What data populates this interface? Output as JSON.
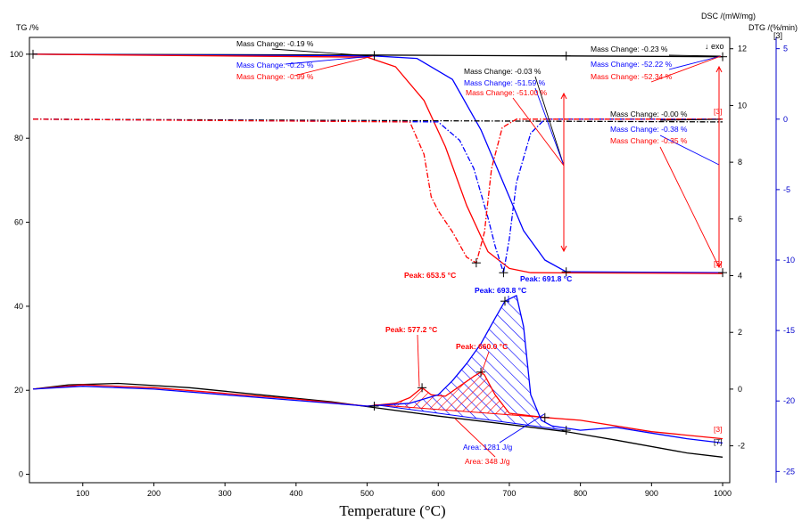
{
  "chart_data": {
    "type": "line",
    "xlabel": "Temperature (°C)",
    "x_ticks": [
      100,
      200,
      300,
      400,
      500,
      600,
      700,
      800,
      900,
      1000
    ],
    "xlim": [
      25,
      1010
    ],
    "axes": {
      "tg": {
        "label": "TG /%",
        "ticks": [
          0,
          20,
          40,
          60,
          80,
          100
        ],
        "ylim": [
          -2,
          104
        ],
        "color": "#000000"
      },
      "dsc": {
        "label": "DSC /(mW/mg)",
        "exo_label": "↓ exo",
        "ticks": [
          -2,
          0,
          2,
          4,
          6,
          8,
          10,
          12
        ],
        "ylim": [
          -3.3,
          12.4
        ],
        "color": "#000000"
      },
      "dtg": {
        "label": "DTG /(%/min)",
        "sublabel": "[3]",
        "ticks": [
          -25,
          -20,
          -15,
          -10,
          -5,
          0,
          5
        ],
        "ylim": [
          -25.8,
          5.8
        ],
        "color": "#0000cc"
      }
    },
    "series": [
      {
        "axis": "tg",
        "color": "#000000",
        "style": "solid",
        "x": [
          30,
          500,
          780,
          1000
        ],
        "y": [
          100,
          99.8,
          99.6,
          99.4
        ]
      },
      {
        "axis": "tg",
        "color": "#0000ff",
        "style": "solid",
        "x": [
          30,
          510,
          570,
          620,
          660,
          690,
          720,
          750,
          780,
          1000
        ],
        "y": [
          100,
          99.6,
          99,
          94,
          82,
          70,
          58,
          51,
          48.2,
          48
        ]
      },
      {
        "axis": "tg",
        "color": "#ff0000",
        "style": "solid",
        "x": [
          30,
          500,
          540,
          580,
          610,
          640,
          670,
          700,
          730,
          1000
        ],
        "y": [
          100,
          99.3,
          97,
          89,
          78,
          64,
          53,
          49,
          48,
          47.8
        ]
      },
      {
        "axis": "dtg",
        "color": "#000000",
        "style": "dashdot",
        "x": [
          30,
          1000
        ],
        "y": [
          0,
          -0.2
        ]
      },
      {
        "axis": "dtg",
        "color": "#0000ff",
        "style": "dashdot",
        "x": [
          30,
          600,
          630,
          650,
          670,
          680,
          691.8,
          700,
          710,
          730,
          750,
          1000
        ],
        "y": [
          0,
          -0.2,
          -1.5,
          -3.5,
          -7,
          -9,
          -10.9,
          -8.5,
          -4.5,
          -1,
          0,
          0
        ]
      },
      {
        "axis": "dtg",
        "color": "#ff0000",
        "style": "dashdot",
        "x": [
          30,
          560,
          580,
          590,
          600,
          620,
          640,
          653.5,
          665,
          675,
          690,
          710,
          1000
        ],
        "y": [
          0,
          -0.2,
          -2.5,
          -5.5,
          -6.5,
          -8,
          -9.8,
          -10.2,
          -8,
          -3.5,
          -0.6,
          0,
          0
        ]
      },
      {
        "axis": "dsc",
        "color": "#000000",
        "style": "solid",
        "x": [
          30,
          80,
          150,
          250,
          350,
          450,
          510,
          600,
          700,
          780,
          850,
          950,
          1000
        ],
        "y": [
          0,
          0.15,
          0.2,
          0.05,
          -0.2,
          -0.45,
          -0.65,
          -0.95,
          -1.25,
          -1.5,
          -1.8,
          -2.25,
          -2.4
        ]
      },
      {
        "axis": "dsc",
        "color": "#ff0000",
        "style": "solid",
        "x": [
          30,
          100,
          200,
          300,
          400,
          500,
          540,
          560,
          577.2,
          590,
          610,
          630,
          650,
          660,
          665,
          680,
          700,
          750,
          800,
          900,
          1000
        ],
        "y": [
          0,
          0.15,
          0.05,
          -0.15,
          -0.35,
          -0.6,
          -0.5,
          -0.3,
          0.05,
          -0.2,
          -0.25,
          0.1,
          0.45,
          0.6,
          0.5,
          -0.2,
          -0.85,
          -1.0,
          -1.1,
          -1.5,
          -1.75
        ]
      },
      {
        "axis": "dsc",
        "color": "#0000ff",
        "style": "solid",
        "x": [
          30,
          100,
          200,
          300,
          400,
          500,
          560,
          600,
          620,
          640,
          660,
          680,
          693.8,
          710,
          720,
          730,
          745,
          760,
          800,
          850,
          900,
          950,
          1000
        ],
        "y": [
          0,
          0.1,
          0,
          -0.2,
          -0.4,
          -0.6,
          -0.5,
          -0.2,
          0.3,
          0.9,
          1.6,
          2.5,
          3.1,
          3.3,
          2.2,
          -0.2,
          -1.1,
          -1.3,
          -1.45,
          -1.35,
          -1.55,
          -1.75,
          -1.9
        ]
      }
    ],
    "annotations": {
      "tg_black": [
        "Mass Change: -0.19 %",
        "Mass Change: -0.03 %",
        "Mass Change: -0.23 %",
        "Mass Change: -0.00 %"
      ],
      "tg_blue": [
        "Mass Change: -0.25 %",
        "Mass Change: -51.59 %",
        "Mass Change: -52.22 %",
        "Mass Change: -0.38 %"
      ],
      "tg_red": [
        "Mass Change: -0.99 %",
        "Mass Change: -51.00 %",
        "Mass Change: -52.34 %",
        "Mass Change: -0.35 %"
      ],
      "dtg_peaks": {
        "red": "Peak: 653.5 °C",
        "blue": "Peak: 691.8 °C"
      },
      "dsc_peaks": {
        "blue": "Peak: 693.8 °C",
        "red_1": "Peak: 577.2 °C",
        "red_2": "Peak: 660.0 °C"
      },
      "dsc_areas": {
        "blue": "Area: 1281 J/g",
        "red": "Area: 348 J/g"
      },
      "curve_tags": [
        "[3]",
        "[3]",
        "[3]",
        "[7]"
      ]
    }
  }
}
